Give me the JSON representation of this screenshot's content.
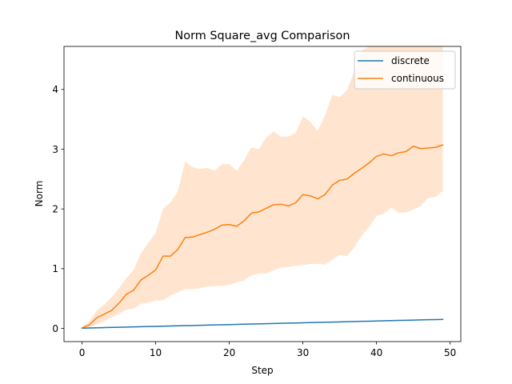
{
  "chart_data": {
    "type": "line",
    "title": "Norm Square_avg Comparison",
    "xlabel": "Step",
    "ylabel": "Norm",
    "xlim": [
      -2.45,
      51.45
    ],
    "ylim": [
      -0.22,
      4.72
    ],
    "xticks": [
      0,
      10,
      20,
      30,
      40,
      50
    ],
    "yticks": [
      0,
      1,
      2,
      3,
      4
    ],
    "grid": false,
    "legend_position": "top-right",
    "x": [
      0,
      1,
      2,
      3,
      4,
      5,
      6,
      7,
      8,
      9,
      10,
      11,
      12,
      13,
      14,
      15,
      16,
      17,
      18,
      19,
      20,
      21,
      22,
      23,
      24,
      25,
      26,
      27,
      28,
      29,
      30,
      31,
      32,
      33,
      34,
      35,
      36,
      37,
      38,
      39,
      40,
      41,
      42,
      43,
      44,
      45,
      46,
      47,
      48,
      49
    ],
    "series": [
      {
        "name": "discrete",
        "color": "#1f77b4",
        "values": [
          0.005,
          0.008,
          0.011,
          0.014,
          0.017,
          0.02,
          0.023,
          0.026,
          0.029,
          0.032,
          0.035,
          0.038,
          0.041,
          0.044,
          0.047,
          0.05,
          0.053,
          0.056,
          0.059,
          0.062,
          0.065,
          0.068,
          0.071,
          0.074,
          0.077,
          0.08,
          0.083,
          0.086,
          0.089,
          0.092,
          0.095,
          0.098,
          0.101,
          0.104,
          0.107,
          0.11,
          0.113,
          0.116,
          0.119,
          0.122,
          0.125,
          0.128,
          0.131,
          0.134,
          0.137,
          0.14,
          0.143,
          0.146,
          0.149,
          0.152
        ]
      },
      {
        "name": "continuous",
        "color": "#ff7f0e",
        "values": [
          0.01,
          0.06,
          0.18,
          0.24,
          0.3,
          0.42,
          0.57,
          0.64,
          0.81,
          0.89,
          0.98,
          1.21,
          1.21,
          1.32,
          1.52,
          1.53,
          1.57,
          1.61,
          1.66,
          1.73,
          1.74,
          1.71,
          1.8,
          1.93,
          1.95,
          2.01,
          2.07,
          2.08,
          2.05,
          2.1,
          2.24,
          2.22,
          2.17,
          2.24,
          2.4,
          2.48,
          2.5,
          2.6,
          2.68,
          2.77,
          2.88,
          2.92,
          2.89,
          2.94,
          2.96,
          3.05,
          3.01,
          3.02,
          3.03,
          3.07
        ],
        "band_lower": [
          0.0,
          0.02,
          0.07,
          0.12,
          0.18,
          0.24,
          0.31,
          0.33,
          0.41,
          0.43,
          0.47,
          0.47,
          0.55,
          0.6,
          0.66,
          0.66,
          0.67,
          0.7,
          0.71,
          0.71,
          0.73,
          0.77,
          0.8,
          0.89,
          0.92,
          0.92,
          0.97,
          1.02,
          1.03,
          1.05,
          1.06,
          1.08,
          1.08,
          1.07,
          1.15,
          1.23,
          1.21,
          1.36,
          1.55,
          1.7,
          1.88,
          1.92,
          2.02,
          1.94,
          1.94,
          1.99,
          2.05,
          2.18,
          2.2,
          2.3
        ],
        "band_upper": [
          0.02,
          0.12,
          0.3,
          0.4,
          0.52,
          0.67,
          0.84,
          0.98,
          1.26,
          1.43,
          1.6,
          2.0,
          2.11,
          2.29,
          2.79,
          2.7,
          2.67,
          2.69,
          2.64,
          2.75,
          2.75,
          2.64,
          2.81,
          3.03,
          3.0,
          3.19,
          3.3,
          3.21,
          3.21,
          3.27,
          3.55,
          3.46,
          3.31,
          3.56,
          3.91,
          3.87,
          3.99,
          4.31,
          4.65,
          4.72,
          4.72,
          4.72,
          4.72,
          4.72,
          4.72,
          4.72,
          4.72,
          4.72,
          4.72,
          4.72
        ],
        "band_color": "#ff7f0e",
        "band_opacity": 0.2
      }
    ]
  }
}
